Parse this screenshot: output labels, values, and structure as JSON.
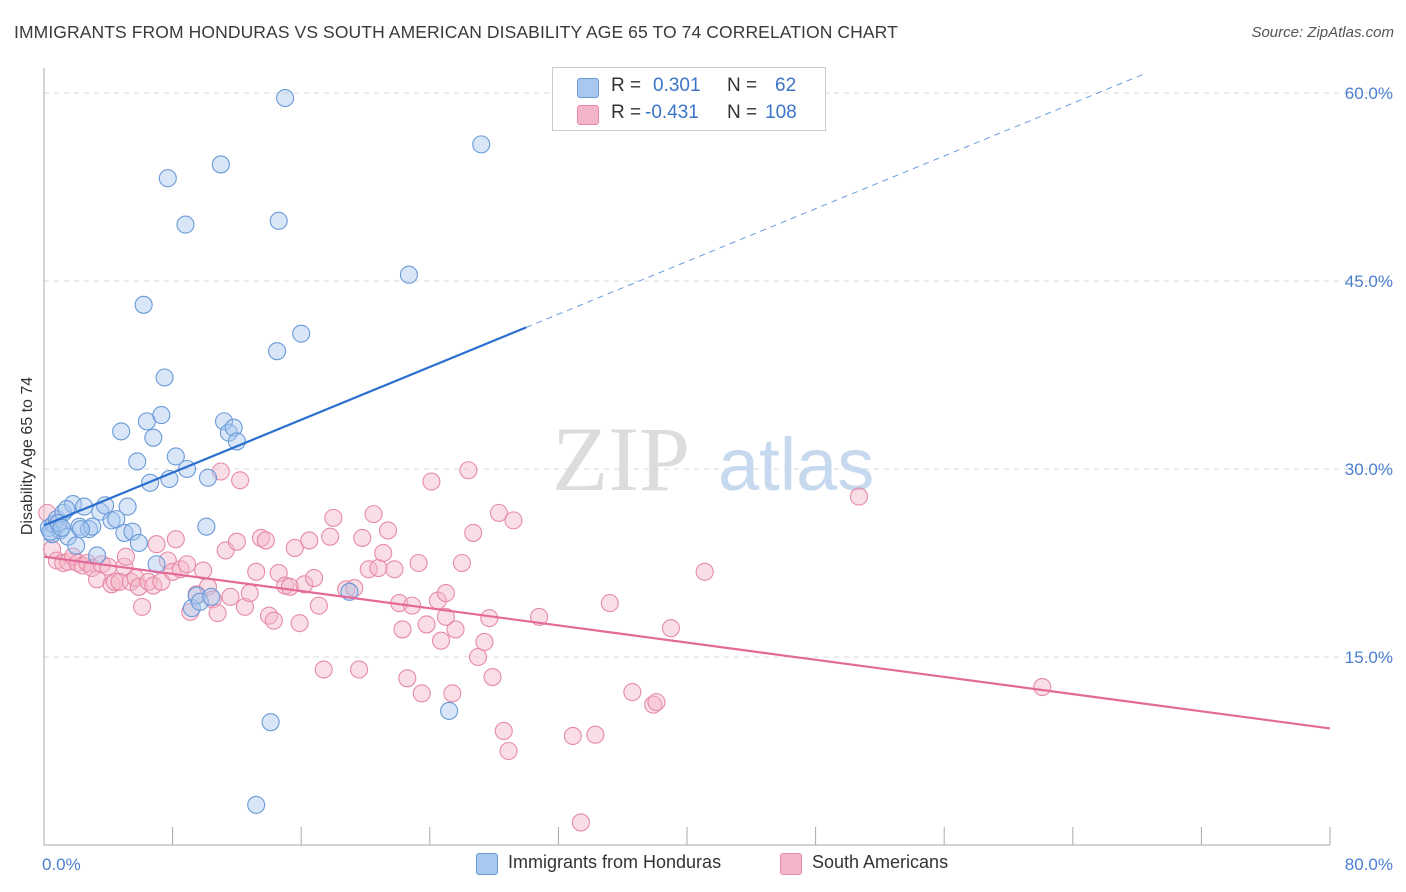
{
  "title": "IMMIGRANTS FROM HONDURAS VS SOUTH AMERICAN DISABILITY AGE 65 TO 74 CORRELATION CHART",
  "source": "Source: ZipAtlas.com",
  "watermark": {
    "zip": "ZIP",
    "atlas": "atlas"
  },
  "legend": {
    "rows": [
      {
        "r_label": "R =",
        "r_value": "0.301",
        "n_label": "N =",
        "n_value": "62",
        "color": "#a9c8f0"
      },
      {
        "r_label": "R =",
        "r_value": "-0.431",
        "n_label": "N =",
        "n_value": "108",
        "color": "#f5b5c8"
      }
    ]
  },
  "bottom_legend": {
    "honduras": "Immigrants from Honduras",
    "south_americans": "South Americans"
  },
  "colors": {
    "honduras_fill": "#a9c8f0",
    "honduras_stroke": "#6a9ad8",
    "honduras_line": "#2a6fcf",
    "sa_fill": "#f5b5c8",
    "sa_stroke": "#e68aa8",
    "sa_line": "#e36a98",
    "grid": "#d8d8d8",
    "tick_text": "#4a7fcf"
  },
  "chart_data": {
    "type": "scatter",
    "title": "IMMIGRANTS FROM HONDURAS VS SOUTH AMERICAN DISABILITY AGE 65 TO 74 CORRELATION CHART",
    "xlabel": "",
    "ylabel": "Disability Age 65 to 74",
    "xlim": [
      0,
      80
    ],
    "ylim": [
      0,
      60
    ],
    "x_tick_labels": [
      "0.0%",
      "80.0%"
    ],
    "y_ticks": [
      15,
      30,
      45,
      60
    ],
    "y_tick_labels": [
      "15.0%",
      "30.0%",
      "45.0%",
      "60.0%"
    ],
    "grid": "horizontal dashed",
    "legend_placement": "top-center",
    "series": [
      {
        "name": "Immigrants from Honduras",
        "R": 0.301,
        "N": 62,
        "points": [
          [
            0.3,
            25.3
          ],
          [
            0.5,
            24.8
          ],
          [
            0.6,
            25.6
          ],
          [
            0.8,
            26.0
          ],
          [
            1.0,
            25.1
          ],
          [
            1.2,
            26.5
          ],
          [
            1.5,
            24.6
          ],
          [
            1.8,
            27.2
          ],
          [
            2.0,
            23.9
          ],
          [
            2.2,
            25.4
          ],
          [
            2.5,
            27.0
          ],
          [
            2.8,
            25.2
          ],
          [
            3.0,
            25.4
          ],
          [
            3.3,
            23.1
          ],
          [
            3.5,
            26.6
          ],
          [
            3.8,
            27.1
          ],
          [
            4.2,
            25.9
          ],
          [
            4.5,
            26.0
          ],
          [
            4.8,
            33.0
          ],
          [
            5.0,
            24.9
          ],
          [
            5.2,
            27.0
          ],
          [
            5.5,
            25.0
          ],
          [
            5.8,
            30.6
          ],
          [
            5.9,
            24.1
          ],
          [
            6.2,
            43.1
          ],
          [
            6.4,
            33.8
          ],
          [
            6.6,
            28.9
          ],
          [
            6.8,
            32.5
          ],
          [
            7.0,
            22.4
          ],
          [
            7.3,
            34.3
          ],
          [
            7.5,
            37.3
          ],
          [
            7.8,
            29.2
          ],
          [
            7.7,
            53.2
          ],
          [
            8.2,
            31.0
          ],
          [
            8.8,
            49.5
          ],
          [
            8.9,
            30.0
          ],
          [
            9.2,
            18.9
          ],
          [
            9.5,
            19.9
          ],
          [
            9.7,
            19.4
          ],
          [
            10.1,
            25.4
          ],
          [
            10.2,
            29.3
          ],
          [
            10.4,
            19.8
          ],
          [
            11.0,
            54.3
          ],
          [
            11.2,
            33.8
          ],
          [
            11.5,
            32.9
          ],
          [
            11.8,
            33.3
          ],
          [
            12.0,
            32.2
          ],
          [
            13.2,
            3.2
          ],
          [
            14.1,
            9.8
          ],
          [
            14.5,
            39.4
          ],
          [
            14.6,
            49.8
          ],
          [
            15.0,
            59.6
          ],
          [
            16.0,
            40.8
          ],
          [
            19.0,
            20.2
          ],
          [
            22.7,
            45.5
          ],
          [
            25.2,
            10.7
          ],
          [
            27.2,
            55.9
          ],
          [
            0.4,
            25.0
          ],
          [
            1.4,
            26.8
          ],
          [
            2.3,
            25.2
          ],
          [
            0.9,
            25.7
          ],
          [
            1.1,
            25.3
          ]
        ],
        "trend": {
          "x1": 0,
          "y1": 25.5,
          "x2": 30,
          "y2": 41.3,
          "dashed_to_x": 80,
          "dashed_to_y": 67.6
        }
      },
      {
        "name": "South Americans",
        "R": -0.431,
        "N": 108,
        "points": [
          [
            0.2,
            26.5
          ],
          [
            0.5,
            23.6
          ],
          [
            0.8,
            22.7
          ],
          [
            1.2,
            22.5
          ],
          [
            1.5,
            22.6
          ],
          [
            1.8,
            23.0
          ],
          [
            2.1,
            22.5
          ],
          [
            2.4,
            22.3
          ],
          [
            2.7,
            22.5
          ],
          [
            3.0,
            22.1
          ],
          [
            3.3,
            21.2
          ],
          [
            3.6,
            22.4
          ],
          [
            4.0,
            22.2
          ],
          [
            4.2,
            20.8
          ],
          [
            4.4,
            21.0
          ],
          [
            4.7,
            21.0
          ],
          [
            5.0,
            22.2
          ],
          [
            5.1,
            23.0
          ],
          [
            5.4,
            21.0
          ],
          [
            5.7,
            21.3
          ],
          [
            5.9,
            20.6
          ],
          [
            6.1,
            19.0
          ],
          [
            6.5,
            21.0
          ],
          [
            6.8,
            20.7
          ],
          [
            7.0,
            24.0
          ],
          [
            7.3,
            21.0
          ],
          [
            7.7,
            22.7
          ],
          [
            8.0,
            21.8
          ],
          [
            8.2,
            24.4
          ],
          [
            8.5,
            22.0
          ],
          [
            8.9,
            22.4
          ],
          [
            9.1,
            18.6
          ],
          [
            9.5,
            20.0
          ],
          [
            9.9,
            21.9
          ],
          [
            10.2,
            20.6
          ],
          [
            10.5,
            19.6
          ],
          [
            10.8,
            18.5
          ],
          [
            11.0,
            29.8
          ],
          [
            11.3,
            23.5
          ],
          [
            11.6,
            19.8
          ],
          [
            12.0,
            24.2
          ],
          [
            12.2,
            29.1
          ],
          [
            12.5,
            19.0
          ],
          [
            12.8,
            20.1
          ],
          [
            13.2,
            21.8
          ],
          [
            13.5,
            24.5
          ],
          [
            13.8,
            24.3
          ],
          [
            14.0,
            18.3
          ],
          [
            14.3,
            17.9
          ],
          [
            14.6,
            21.7
          ],
          [
            15.0,
            20.7
          ],
          [
            15.3,
            20.6
          ],
          [
            15.6,
            23.7
          ],
          [
            15.9,
            17.7
          ],
          [
            16.2,
            20.8
          ],
          [
            16.5,
            24.3
          ],
          [
            16.8,
            21.3
          ],
          [
            17.1,
            19.1
          ],
          [
            17.4,
            14.0
          ],
          [
            17.8,
            24.6
          ],
          [
            18.0,
            26.1
          ],
          [
            18.8,
            20.4
          ],
          [
            19.3,
            20.5
          ],
          [
            19.6,
            14.0
          ],
          [
            19.8,
            24.5
          ],
          [
            20.2,
            22.0
          ],
          [
            20.5,
            26.4
          ],
          [
            20.8,
            22.1
          ],
          [
            21.1,
            23.3
          ],
          [
            21.4,
            25.1
          ],
          [
            21.8,
            22.0
          ],
          [
            22.1,
            19.3
          ],
          [
            22.3,
            17.2
          ],
          [
            22.6,
            13.3
          ],
          [
            22.9,
            19.1
          ],
          [
            23.3,
            22.5
          ],
          [
            23.5,
            12.1
          ],
          [
            23.8,
            17.6
          ],
          [
            24.1,
            29.0
          ],
          [
            24.5,
            19.5
          ],
          [
            24.7,
            16.3
          ],
          [
            25.0,
            20.1
          ],
          [
            25.4,
            12.1
          ],
          [
            25.6,
            17.2
          ],
          [
            26.0,
            22.5
          ],
          [
            26.4,
            29.9
          ],
          [
            26.7,
            24.9
          ],
          [
            27.0,
            15.0
          ],
          [
            27.4,
            16.2
          ],
          [
            27.7,
            18.1
          ],
          [
            27.9,
            13.4
          ],
          [
            28.3,
            26.5
          ],
          [
            28.6,
            9.1
          ],
          [
            28.9,
            7.5
          ],
          [
            29.2,
            25.9
          ],
          [
            30.8,
            18.2
          ],
          [
            32.9,
            8.7
          ],
          [
            33.4,
            1.8
          ],
          [
            34.3,
            8.8
          ],
          [
            35.2,
            19.3
          ],
          [
            36.6,
            12.2
          ],
          [
            37.9,
            11.2
          ],
          [
            38.1,
            11.4
          ],
          [
            39.0,
            17.3
          ],
          [
            41.1,
            21.8
          ],
          [
            50.7,
            27.8
          ],
          [
            62.1,
            12.6
          ],
          [
            25.0,
            18.2
          ]
        ],
        "trend": {
          "x1": 0,
          "y1": 23.0,
          "x2": 80,
          "y2": 9.3
        }
      }
    ]
  }
}
